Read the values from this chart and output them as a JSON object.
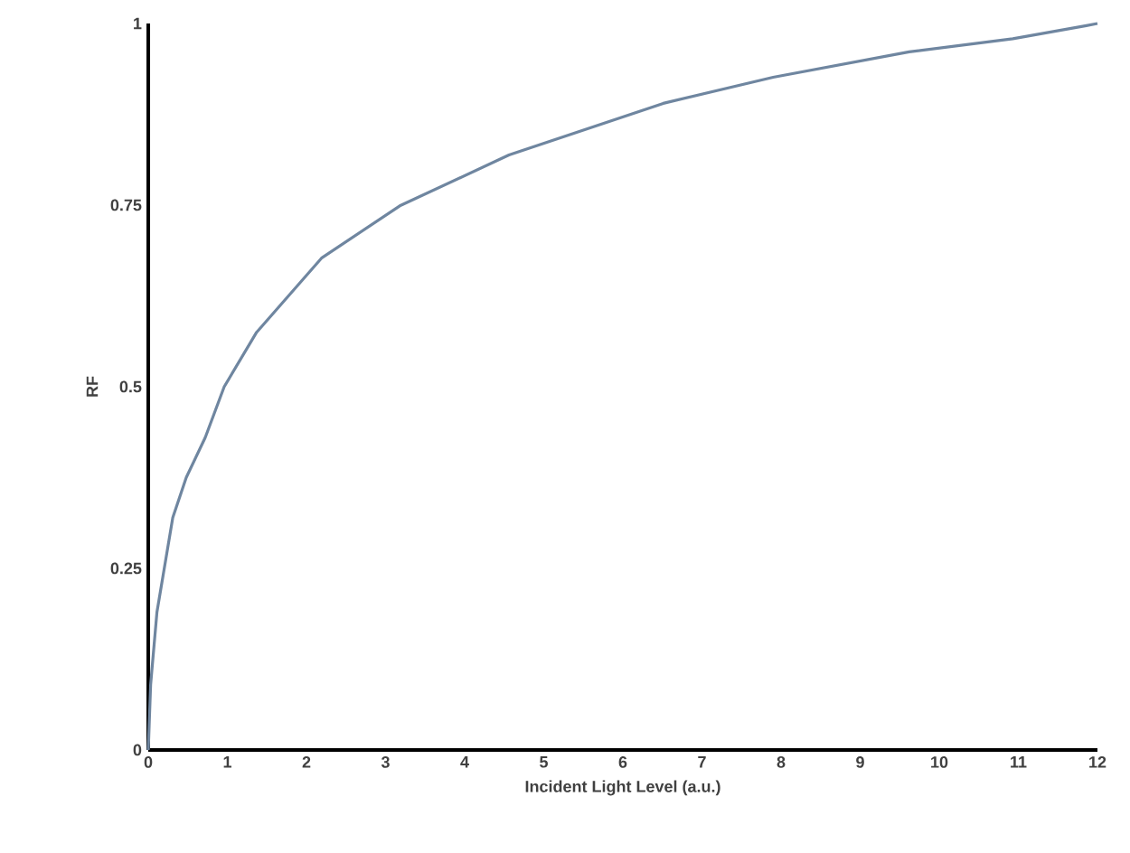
{
  "chart_data": {
    "type": "line",
    "xlabel": "Incident Light Level (a.u.)",
    "ylabel": "RF",
    "xlim": [
      0,
      12
    ],
    "ylim": [
      0,
      1
    ],
    "xticks": [
      0,
      1,
      2,
      3,
      4,
      5,
      6,
      7,
      8,
      9,
      10,
      11,
      12
    ],
    "yticks": [
      0,
      {
        "value": 0.25,
        "label": "0.25"
      },
      {
        "value": 0.5,
        "label": "0.5"
      },
      {
        "value": 0.75,
        "label": "0.75"
      },
      1
    ],
    "grid": false,
    "series": [
      {
        "color": "#6f86a0",
        "x": [
          0,
          0.03,
          0.11,
          0.31,
          0.48,
          0.72,
          0.96,
          1.37,
          2.19,
          3.18,
          4.56,
          6.51,
          7.9,
          9.62,
          10.93,
          11.86,
          12
        ],
        "values": [
          0,
          0.09,
          0.19,
          0.32,
          0.375,
          0.43,
          0.5,
          0.575,
          0.677,
          0.749,
          0.819,
          0.89,
          0.926,
          0.961,
          0.979,
          0.997,
          1
        ]
      }
    ]
  }
}
